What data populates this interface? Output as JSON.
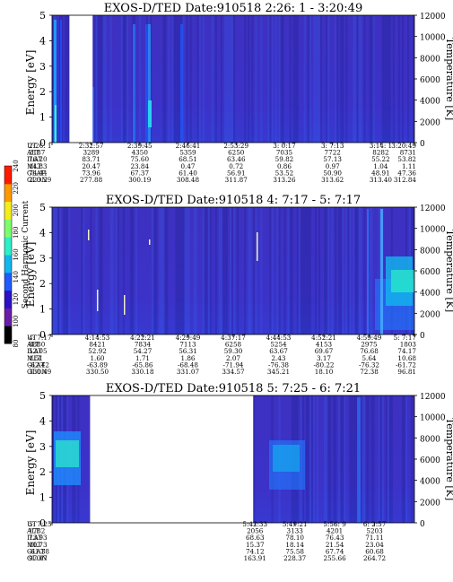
{
  "chart_data": [
    {
      "type": "heatmap",
      "title": "EXOS-D/TED   Date:910518  2:26: 1 - 3:20:49",
      "ylabel": "Energy [eV]",
      "y2label": "Temperature [K]",
      "ylim": [
        0,
        5
      ],
      "y2lim": [
        0,
        12000
      ],
      "yticks": [
        "0",
        "1",
        "2",
        "3",
        "4",
        "5"
      ],
      "y2ticks": [
        "0",
        "2000",
        "4000",
        "6000",
        "8000",
        "10000",
        "12000"
      ],
      "gaps": [
        [
          0.048,
          0.112
        ]
      ],
      "xtick_labels": [
        "2:26: 1",
        "2:32:57",
        "2:39:45",
        "2:46:41",
        "2:53:29",
        "3: 0:17",
        "3: 7:13",
        "3:14: 1",
        "3:20:49"
      ],
      "table": [
        {
          "name": "UT",
          "values": [
            "2:26: 1",
            "2:32:57",
            "2:39:45",
            "2:46:41",
            "2:53:29",
            "3: 0:17",
            "3: 7:13",
            "3:14: 1",
            "3:20:49"
          ]
        },
        {
          "name": "ALT",
          "values": [
            "2187",
            "3289",
            "4350",
            "5359",
            "6250",
            "7035",
            "7722",
            "8282",
            "8731"
          ]
        },
        {
          "name": "ILAT",
          "values": [
            "76.20",
            "83.71",
            "75.60",
            "68.51",
            "63.46",
            "59.82",
            "57.13",
            "55.22",
            "53.82"
          ]
        },
        {
          "name": "MLT",
          "values": [
            "14.83",
            "20.47",
            "23.84",
            "0.47",
            "0.72",
            "0.86",
            "0.97",
            "1.04",
            "1.11"
          ]
        },
        {
          "name": "GLAT",
          "values": [
            "74.44",
            "73.96",
            "67.37",
            "61.40",
            "56.91",
            "53.52",
            "50.90",
            "48.91",
            "47.36"
          ]
        },
        {
          "name": "GLON",
          "values": [
            "223.29",
            "277.88",
            "300.19",
            "308.48",
            "311.87",
            "313.26",
            "313.62",
            "313.40",
            "312.84"
          ]
        }
      ]
    },
    {
      "type": "heatmap",
      "title": "EXOS-D/TED   Date:910518  4: 7:17 - 5: 7:17",
      "ylabel": "Energy [eV]",
      "y2label": "Temperature [K]",
      "ylim": [
        0,
        5
      ],
      "y2lim": [
        0,
        12000
      ],
      "yticks": [
        "0",
        "1",
        "2",
        "3",
        "4",
        "5"
      ],
      "y2ticks": [
        "0",
        "2000",
        "4000",
        "6000",
        "8000",
        "10000",
        "12000"
      ],
      "gaps": [],
      "xtick_labels": [
        "4: 7:17",
        "4:14:53",
        "4:22:21",
        "4:29:49",
        "4:37:17",
        "4:44:53",
        "4:52:21",
        "4:59:49",
        "5: 7:17"
      ],
      "table": [
        {
          "name": "UT",
          "values": [
            "4: 7:17",
            "4:14:53",
            "4:22:21",
            "4:29:49",
            "4:37:17",
            "4:44:53",
            "4:52:21",
            "4:59:49",
            "5: 7:17"
          ]
        },
        {
          "name": "ALT",
          "values": [
            "8880",
            "8421",
            "7834",
            "7113",
            "6258",
            "5254",
            "4153",
            "2975",
            "1803"
          ]
        },
        {
          "name": "ILAT",
          "values": [
            "52.05",
            "52.92",
            "54.27",
            "56.31",
            "59.30",
            "63.67",
            "69.67",
            "76.68",
            "74.17"
          ]
        },
        {
          "name": "MLT",
          "values": [
            "1.51",
            "1.60",
            "1.71",
            "1.86",
            "2.07",
            "2.43",
            "3.17",
            "5.64",
            "10.68"
          ]
        },
        {
          "name": "GLAT",
          "values": [
            "-62.42",
            "-63.89",
            "-65.86",
            "-68.48",
            "-71.94",
            "-76.38",
            "-80.22",
            "-76.32",
            "-61.72"
          ]
        },
        {
          "name": "GLON",
          "values": [
            "331.49",
            "330.50",
            "330.18",
            "331.07",
            "334.57",
            "345.21",
            "18.10",
            "72.38",
            "96.81"
          ]
        }
      ]
    },
    {
      "type": "heatmap",
      "title": "EXOS-D/TED   Date:910518  5: 7:25 - 6: 7:21",
      "ylabel": "Energy [eV]",
      "y2label": "Temperature [K]",
      "ylim": [
        0,
        5
      ],
      "y2lim": [
        0,
        12000
      ],
      "yticks": [
        "0",
        "1",
        "2",
        "3",
        "4",
        "5"
      ],
      "y2ticks": [
        "0",
        "2000",
        "4000",
        "6000",
        "8000",
        "10000",
        "12000"
      ],
      "gaps": [
        [
          0.105,
          0.555
        ]
      ],
      "xtick_labels": [
        "5: 7:25",
        "5:42:33",
        "5:49:21",
        "5:56: 9",
        "6: 2:57"
      ],
      "table": [
        {
          "name": "UT",
          "values": [
            "5: 7:25",
            "5:42:33",
            "5:49:21",
            "5:56: 9",
            "6: 2:57"
          ]
        },
        {
          "name": "ALT",
          "values": [
            "1782",
            "2056",
            "3133",
            "4201",
            "5203"
          ]
        },
        {
          "name": "ILAT",
          "values": [
            "73.93",
            "68.63",
            "78.10",
            "76.43",
            "71.11"
          ]
        },
        {
          "name": "MLT",
          "values": [
            "10.73",
            "15.37",
            "18.14",
            "21.54",
            "23.04"
          ]
        },
        {
          "name": "GLAT",
          "values": [
            "-61.38",
            "74.12",
            "75.58",
            "67.74",
            "60.68"
          ]
        },
        {
          "name": "GLON",
          "values": [
            "97.07",
            "163.91",
            "228.37",
            "255.66",
            "264.72"
          ]
        }
      ]
    }
  ],
  "colorbar": {
    "label": "Second Harmonic Current",
    "ticks": [
      "80",
      "100",
      "120",
      "140",
      "160",
      "180",
      "200",
      "220",
      "240"
    ],
    "colors": [
      "#000000",
      "#6a1ea8",
      "#2b12c8",
      "#1f5bff",
      "#11b7ee",
      "#2cf0c8",
      "#7bff6a",
      "#f3ee1a",
      "#ff9a00",
      "#ff1a00"
    ]
  }
}
